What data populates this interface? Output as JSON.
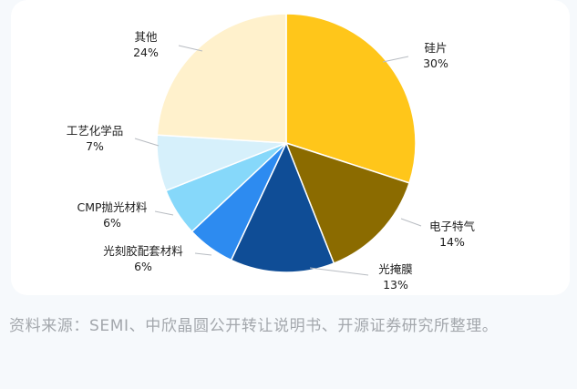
{
  "chart_data": {
    "type": "pie",
    "slices": [
      {
        "label": "硅片",
        "pct_text": "30%",
        "value": 30,
        "color": "#ffc61a"
      },
      {
        "label": "电子特气",
        "pct_text": "14%",
        "value": 14,
        "color": "#8b6b00"
      },
      {
        "label": "光掩膜",
        "pct_text": "13%",
        "value": 13,
        "color": "#0f4d96"
      },
      {
        "label": "光刻胶配套材料",
        "pct_text": "6%",
        "value": 6,
        "color": "#2d8bf0"
      },
      {
        "label": "CMP抛光材料",
        "pct_text": "6%",
        "value": 6,
        "color": "#86d8fa"
      },
      {
        "label": "工艺化学品",
        "pct_text": "7%",
        "value": 7,
        "color": "#d6f0fb"
      },
      {
        "label": "其他",
        "pct_text": "24%",
        "value": 24,
        "color": "#fff1cc"
      }
    ]
  },
  "source_note": "资料来源：SEMI、中欣晶圆公开转让说明书、开源证券研究所整理。"
}
